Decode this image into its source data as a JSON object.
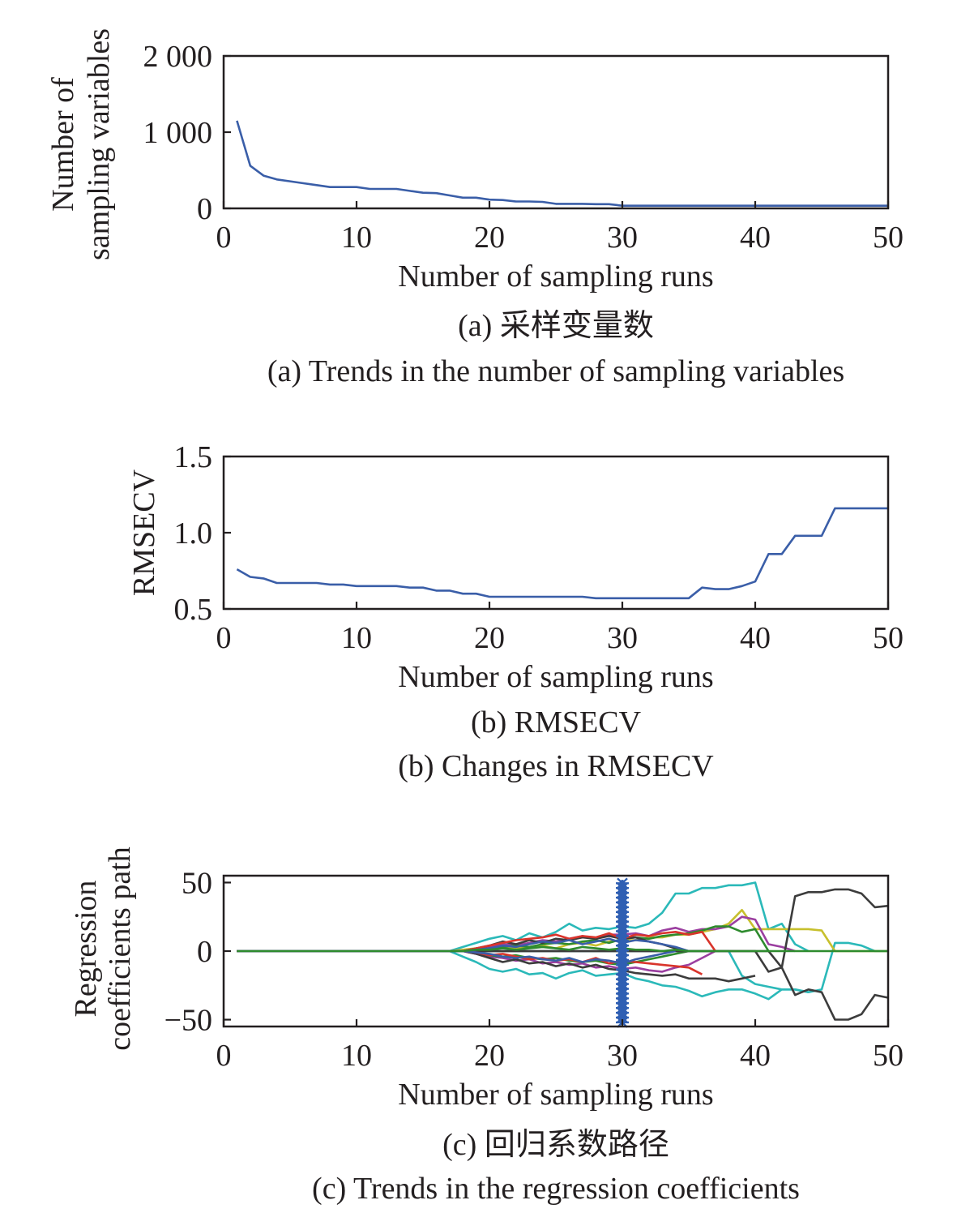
{
  "chart_data": [
    {
      "type": "line",
      "xlabel": "Number of sampling runs",
      "ylabel_lines": [
        "Number of",
        "sampling variables"
      ],
      "caption_cn": "(a) 采样变量数",
      "caption_en": "(a) Trends in the number of sampling variables",
      "xlim": [
        0,
        50
      ],
      "ylim": [
        0,
        2000
      ],
      "xticks": [
        0,
        10,
        20,
        30,
        40,
        50
      ],
      "xtick_labels": [
        "0",
        "10",
        "20",
        "30",
        "40",
        "50"
      ],
      "yticks": [
        0,
        1000,
        2000
      ],
      "ytick_labels": [
        "0",
        "1 000",
        "2 000"
      ],
      "series": [
        {
          "color": "#3a5ea8",
          "x": [
            1,
            2,
            3,
            4,
            5,
            6,
            7,
            8,
            9,
            10,
            11,
            12,
            13,
            14,
            15,
            16,
            17,
            18,
            19,
            20,
            21,
            22,
            23,
            24,
            25,
            26,
            27,
            28,
            29,
            30,
            31,
            32,
            33,
            34,
            35,
            36,
            37,
            38,
            39,
            40,
            41,
            42,
            43,
            44,
            45,
            46,
            47,
            48,
            49,
            50
          ],
          "y": [
            1150,
            560,
            430,
            380,
            355,
            330,
            305,
            280,
            280,
            280,
            255,
            255,
            255,
            230,
            205,
            200,
            170,
            140,
            140,
            115,
            110,
            90,
            90,
            85,
            60,
            60,
            60,
            55,
            55,
            35,
            35,
            35,
            35,
            35,
            35,
            35,
            35,
            35,
            35,
            35,
            35,
            35,
            35,
            35,
            35,
            35,
            35,
            35,
            35,
            35
          ]
        }
      ]
    },
    {
      "type": "line",
      "xlabel": "Number of sampling runs",
      "ylabel_lines": [
        "RMSECV"
      ],
      "caption_cn": "(b) RMSECV",
      "caption_en": "(b) Changes in RMSECV",
      "xlim": [
        0,
        50
      ],
      "ylim": [
        0.5,
        1.5
      ],
      "xticks": [
        0,
        10,
        20,
        30,
        40,
        50
      ],
      "xtick_labels": [
        "0",
        "10",
        "20",
        "30",
        "40",
        "50"
      ],
      "yticks": [
        0.5,
        1.0,
        1.5
      ],
      "ytick_labels": [
        "0.5",
        "1.0",
        "1.5"
      ],
      "series": [
        {
          "color": "#3a5ea8",
          "x": [
            1,
            2,
            3,
            4,
            5,
            6,
            7,
            8,
            9,
            10,
            11,
            12,
            13,
            14,
            15,
            16,
            17,
            18,
            19,
            20,
            21,
            22,
            23,
            24,
            25,
            26,
            27,
            28,
            29,
            30,
            31,
            32,
            33,
            34,
            35,
            36,
            37,
            38,
            39,
            40,
            41,
            42,
            43,
            44,
            45,
            46,
            47,
            48,
            49,
            50
          ],
          "y": [
            0.76,
            0.71,
            0.7,
            0.67,
            0.67,
            0.67,
            0.67,
            0.66,
            0.66,
            0.65,
            0.65,
            0.65,
            0.65,
            0.64,
            0.64,
            0.62,
            0.62,
            0.6,
            0.6,
            0.58,
            0.58,
            0.58,
            0.58,
            0.58,
            0.58,
            0.58,
            0.58,
            0.57,
            0.57,
            0.57,
            0.57,
            0.57,
            0.57,
            0.57,
            0.57,
            0.64,
            0.63,
            0.63,
            0.65,
            0.68,
            0.86,
            0.86,
            0.98,
            0.98,
            0.98,
            1.16,
            1.16,
            1.16,
            1.16,
            1.16
          ]
        }
      ]
    },
    {
      "type": "line",
      "xlabel": "Number of sampling runs",
      "ylabel_lines": [
        "Regression",
        "coefficients path"
      ],
      "caption_cn": "(c) 回归系数路径",
      "caption_en": "(c) Trends in the regression coefficients",
      "xlim": [
        0,
        50
      ],
      "ylim": [
        -55,
        55
      ],
      "xticks": [
        0,
        10,
        20,
        30,
        40,
        50
      ],
      "xtick_labels": [
        "0",
        "10",
        "20",
        "30",
        "40",
        "50"
      ],
      "yticks": [
        -50,
        0,
        50
      ],
      "ytick_labels": [
        "−50",
        "0",
        "50"
      ],
      "vertical_marker": {
        "x": 30,
        "color": "#2f5fb3",
        "ymin": -52,
        "ymax": 52
      },
      "series": [
        {
          "color": "#2bb9b9",
          "x": [
            1,
            17,
            18,
            19,
            20,
            21,
            22,
            23,
            24,
            25,
            26,
            27,
            28,
            29,
            30,
            31,
            32,
            33,
            34,
            35,
            36,
            37,
            38,
            39,
            40,
            41,
            42,
            43,
            44
          ],
          "y": [
            0,
            0,
            3,
            6,
            9,
            11,
            8,
            13,
            10,
            14,
            20,
            15,
            17,
            16,
            18,
            17,
            20,
            28,
            42,
            42,
            46,
            46,
            48,
            48,
            50,
            16,
            20,
            5,
            0
          ]
        },
        {
          "color": "#2bb9b9",
          "x": [
            1,
            17,
            18,
            19,
            20,
            21,
            22,
            23,
            24,
            25,
            26,
            27,
            28,
            29,
            30,
            31,
            32,
            33,
            34,
            35,
            36,
            37,
            38,
            39,
            40,
            41,
            42,
            43,
            44
          ],
          "y": [
            0,
            0,
            -4,
            -8,
            -13,
            -15,
            -13,
            -17,
            -16,
            -20,
            -16,
            -14,
            -18,
            -17,
            -16,
            -20,
            -22,
            -25,
            -26,
            -29,
            -33,
            -30,
            -28,
            -28,
            -31,
            -35,
            -28,
            -28,
            -30
          ]
        },
        {
          "color": "#2bb9b9",
          "x": [
            1,
            38,
            39,
            40,
            41,
            42,
            43,
            44,
            45,
            46,
            47,
            48,
            49,
            50
          ],
          "y": [
            0,
            0,
            -18,
            -24,
            -26,
            -28,
            -28,
            -30,
            -28,
            6,
            6,
            4,
            0,
            0
          ]
        },
        {
          "color": "#c7c02d",
          "x": [
            1,
            17,
            18,
            19,
            20,
            21,
            22,
            23,
            24,
            25,
            26,
            27,
            28,
            29,
            30,
            31,
            32,
            33,
            34,
            35,
            36,
            37,
            38,
            39,
            40,
            41,
            42,
            43,
            44,
            45,
            46,
            47,
            48,
            49,
            50
          ],
          "y": [
            0,
            0,
            1,
            2,
            2,
            3,
            2,
            3,
            4,
            2,
            5,
            6,
            4,
            7,
            8,
            8,
            10,
            10,
            12,
            12,
            14,
            16,
            20,
            30,
            16,
            16,
            16,
            16,
            16,
            15,
            0,
            0,
            0,
            0,
            0
          ]
        },
        {
          "color": "#9b3fa0",
          "x": [
            1,
            18,
            19,
            20,
            21,
            22,
            23,
            24,
            25,
            26,
            27,
            28,
            29,
            30,
            31,
            32,
            33,
            34,
            35,
            36,
            37,
            38,
            39,
            40,
            41,
            42,
            43
          ],
          "y": [
            0,
            0,
            1,
            3,
            5,
            4,
            6,
            8,
            7,
            9,
            11,
            9,
            12,
            12,
            13,
            11,
            15,
            17,
            14,
            16,
            16,
            18,
            25,
            23,
            5,
            3,
            0
          ]
        },
        {
          "color": "#9b3fa0",
          "x": [
            1,
            18,
            19,
            20,
            21,
            22,
            23,
            24,
            25,
            26,
            27,
            28,
            29,
            30,
            31,
            32,
            33,
            34,
            35,
            36,
            37
          ],
          "y": [
            0,
            0,
            -2,
            -4,
            -5,
            -7,
            -6,
            -9,
            -8,
            -10,
            -9,
            -12,
            -11,
            -13,
            -12,
            -14,
            -15,
            -12,
            -10,
            -5,
            0
          ]
        },
        {
          "color": "#2e8b2e",
          "x": [
            1,
            18,
            19,
            20,
            21,
            22,
            23,
            24,
            25,
            26,
            27,
            28,
            29,
            30,
            31,
            32,
            33,
            34,
            35,
            36,
            37,
            38,
            39,
            40,
            41
          ],
          "y": [
            0,
            0,
            1,
            2,
            3,
            4,
            3,
            5,
            6,
            5,
            7,
            8,
            6,
            9,
            10,
            9,
            11,
            12,
            13,
            15,
            18,
            18,
            14,
            16,
            0
          ]
        },
        {
          "color": "#2e8b2e",
          "x": [
            1,
            18,
            19,
            20,
            21,
            22,
            23,
            24,
            25,
            26,
            27,
            28,
            29,
            30,
            31,
            32,
            33,
            34,
            35
          ],
          "y": [
            0,
            0,
            -1,
            -3,
            -4,
            -3,
            -5,
            -6,
            -5,
            -7,
            -8,
            -7,
            -9,
            -10,
            -8,
            -6,
            -4,
            -2,
            0
          ]
        },
        {
          "color": "#3c3c3c",
          "x": [
            1,
            40,
            41,
            42,
            43,
            44,
            45,
            46,
            47,
            48,
            49,
            50
          ],
          "y": [
            0,
            0,
            -15,
            -12,
            40,
            43,
            43,
            45,
            45,
            42,
            32,
            33
          ]
        },
        {
          "color": "#3c3c3c",
          "x": [
            1,
            40,
            41,
            42,
            43,
            44,
            45,
            46,
            47,
            48,
            49,
            50
          ],
          "y": [
            0,
            0,
            0,
            -12,
            -32,
            -28,
            -30,
            -50,
            -50,
            -46,
            -32,
            -34
          ]
        },
        {
          "color": "#3c3c3c",
          "x": [
            1,
            18,
            19,
            20,
            21,
            22,
            23,
            24,
            25,
            26,
            27,
            28,
            29,
            30,
            31,
            32,
            33,
            34,
            35,
            36,
            37,
            38,
            39,
            40
          ],
          "y": [
            0,
            0,
            -2,
            -5,
            -8,
            -6,
            -9,
            -8,
            -11,
            -9,
            -12,
            -10,
            -13,
            -14,
            -16,
            -17,
            -18,
            -17,
            -20,
            -20,
            -20,
            -22,
            -20,
            -18
          ]
        },
        {
          "color": "#3c3c3c",
          "x": [
            1,
            18,
            19,
            20,
            21,
            22,
            23,
            24,
            25,
            26,
            27,
            28,
            29,
            30,
            31,
            32,
            33,
            34,
            35
          ],
          "y": [
            0,
            0,
            2,
            4,
            7,
            5,
            8,
            6,
            9,
            8,
            10,
            9,
            11,
            9,
            10,
            7,
            5,
            2,
            0
          ]
        },
        {
          "color": "#d9342b",
          "x": [
            1,
            18,
            19,
            20,
            21,
            22,
            23,
            24,
            25,
            26,
            27,
            28,
            29,
            30,
            31,
            32,
            33,
            34,
            35,
            36,
            37
          ],
          "y": [
            0,
            0,
            2,
            4,
            6,
            8,
            9,
            10,
            12,
            9,
            11,
            10,
            13,
            9,
            12,
            11,
            13,
            14,
            12,
            14,
            0
          ]
        },
        {
          "color": "#d9342b",
          "x": [
            1,
            18,
            19,
            20,
            21,
            22,
            23,
            24,
            25,
            26,
            27,
            28,
            29,
            30,
            31,
            32,
            33,
            34,
            35,
            36
          ],
          "y": [
            0,
            0,
            -1,
            -3,
            -2,
            -4,
            -6,
            -5,
            -7,
            -6,
            -8,
            -5,
            -9,
            -7,
            -8,
            -9,
            -10,
            -11,
            -12,
            -17
          ]
        },
        {
          "color": "#3a5ea8",
          "x": [
            1,
            18,
            19,
            20,
            21,
            22,
            23,
            24,
            25,
            26,
            27,
            28,
            29,
            30,
            31,
            32,
            33,
            34,
            35
          ],
          "y": [
            0,
            0,
            1,
            2,
            4,
            3,
            5,
            7,
            6,
            8,
            5,
            7,
            9,
            6,
            8,
            7,
            5,
            3,
            0
          ]
        },
        {
          "color": "#3a5ea8",
          "x": [
            1,
            18,
            19,
            20,
            21,
            22,
            23,
            24,
            25,
            26,
            27,
            28,
            29,
            30,
            31,
            32,
            33,
            34
          ],
          "y": [
            0,
            0,
            -1,
            -2,
            -4,
            -5,
            -4,
            -6,
            -7,
            -5,
            -8,
            -6,
            -7,
            -9,
            -6,
            -4,
            -2,
            0
          ]
        },
        {
          "color": "#2e8b2e",
          "x": [
            1,
            17,
            18,
            19,
            20,
            21,
            22,
            23,
            24,
            25,
            26,
            27,
            28,
            29,
            30,
            31,
            32,
            33,
            34,
            35,
            36,
            37,
            38,
            39,
            40,
            41,
            42,
            43,
            44,
            45,
            46,
            47,
            48,
            49,
            50
          ],
          "y": [
            0,
            0,
            0,
            1,
            1,
            2,
            1,
            2,
            3,
            2,
            1,
            3,
            2,
            1,
            2,
            1,
            1,
            0,
            1,
            0,
            0,
            0,
            0,
            0,
            0,
            0,
            0,
            0,
            0,
            0,
            0,
            0,
            0,
            0,
            0
          ]
        }
      ]
    }
  ]
}
